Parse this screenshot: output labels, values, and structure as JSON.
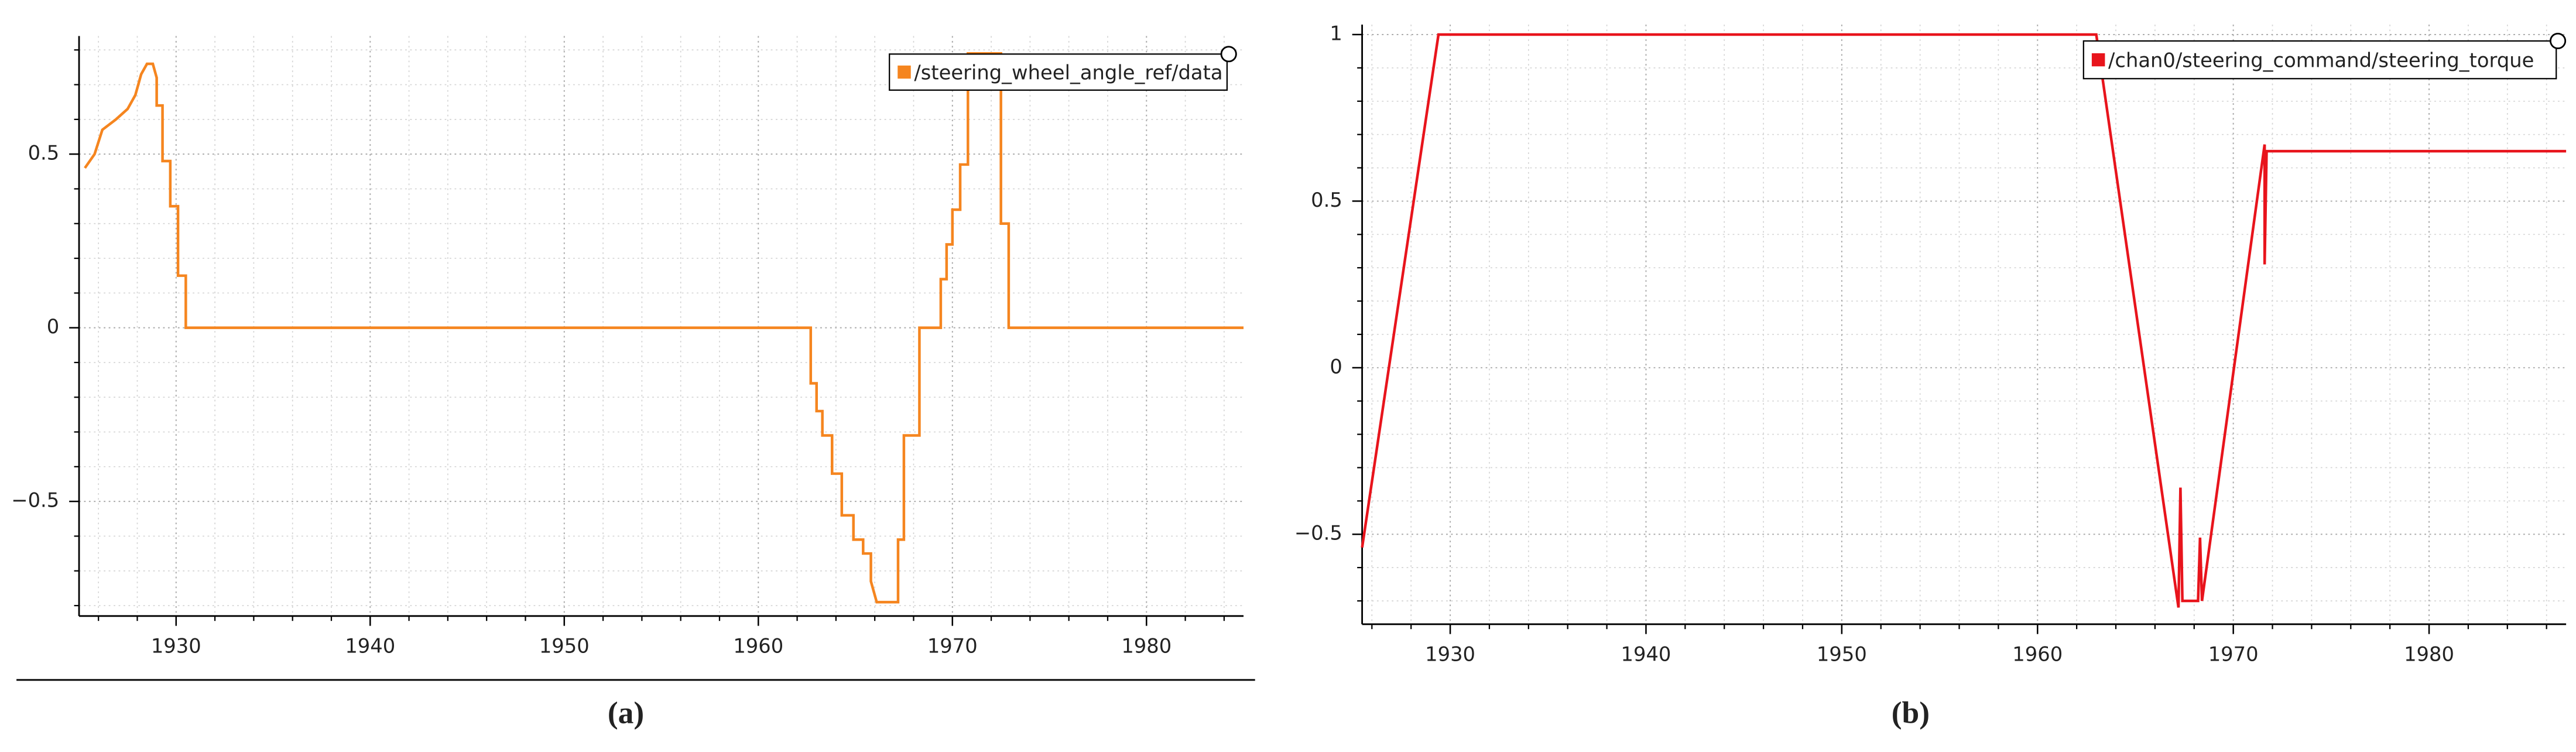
{
  "chart_data": [
    {
      "type": "line",
      "caption": "(a)",
      "x": [
        1925.3,
        1925.8,
        1926.2,
        1926.9,
        1927.5,
        1927.9,
        1928.2,
        1928.5,
        1928.8,
        1929.0,
        1929.0,
        1929.3,
        1929.3,
        1929.7,
        1929.7,
        1930.1,
        1930.1,
        1930.5,
        1930.5,
        1962.7,
        1962.7,
        1963.0,
        1963.0,
        1963.3,
        1963.3,
        1963.8,
        1963.8,
        1964.3,
        1964.3,
        1964.9,
        1964.9,
        1965.4,
        1965.4,
        1965.8,
        1965.8,
        1966.1,
        1967.2,
        1967.2,
        1967.5,
        1967.5,
        1968.3,
        1968.3,
        1969.4,
        1969.4,
        1969.7,
        1969.7,
        1970.0,
        1970.0,
        1970.4,
        1970.4,
        1970.8,
        1970.8,
        1972.5,
        1972.5,
        1972.9,
        1972.9,
        1985
      ],
      "series": [
        {
          "name": "/steering_wheel_angle_ref/data",
          "color": "#f5851f",
          "values": [
            0.46,
            0.5,
            0.57,
            0.6,
            0.63,
            0.67,
            0.73,
            0.76,
            0.76,
            0.72,
            0.64,
            0.64,
            0.48,
            0.48,
            0.35,
            0.35,
            0.15,
            0.15,
            0,
            0,
            -0.16,
            -0.16,
            -0.24,
            -0.24,
            -0.31,
            -0.31,
            -0.42,
            -0.42,
            -0.54,
            -0.54,
            -0.61,
            -0.61,
            -0.65,
            -0.65,
            -0.73,
            -0.79,
            -0.79,
            -0.61,
            -0.61,
            -0.31,
            -0.31,
            0,
            0,
            0.14,
            0.14,
            0.24,
            0.24,
            0.34,
            0.34,
            0.47,
            0.47,
            0.79,
            0.79,
            0.3,
            0.3,
            0,
            0
          ]
        }
      ],
      "xlim": [
        1925,
        1985
      ],
      "ylim": [
        -0.83,
        0.84
      ],
      "xticks": [
        1930,
        1940,
        1950,
        1960,
        1970,
        1980
      ],
      "yticks": [
        {
          "value": -0.5,
          "label": "−0.5"
        },
        0,
        0.5
      ],
      "grid": true,
      "legend": "upper right"
    },
    {
      "type": "line",
      "caption": "(b)",
      "x": [
        1925.5,
        1929.4,
        1963.0,
        1967.2,
        1967.3,
        1967.4,
        1968.2,
        1968.3,
        1968.4,
        1971.6,
        1971.6,
        1971.7,
        1987
      ],
      "series": [
        {
          "name": "/chan0/steering_command/steering_torque",
          "color": "#e8141c",
          "values": [
            -0.54,
            1,
            1,
            -0.72,
            -0.36,
            -0.7,
            -0.7,
            -0.51,
            -0.7,
            0.67,
            0.31,
            0.65,
            0.65
          ]
        }
      ],
      "xlim": [
        1925.5,
        1987
      ],
      "ylim": [
        -0.77,
        1.03
      ],
      "xticks": [
        1930,
        1940,
        1950,
        1960,
        1970,
        1980
      ],
      "yticks": [
        {
          "value": -0.5,
          "label": "−0.5"
        },
        0,
        0.5,
        1
      ],
      "grid": true,
      "legend": "upper right"
    }
  ]
}
